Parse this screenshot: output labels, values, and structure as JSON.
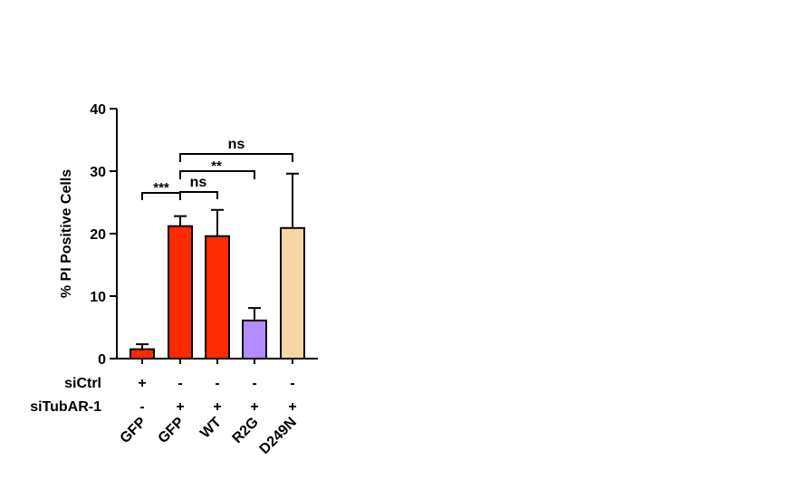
{
  "chart_data": {
    "type": "bar",
    "categories": [
      "GFP",
      "GFP",
      "WT",
      "R2G",
      "D249N"
    ],
    "values": [
      1.5,
      21.2,
      19.6,
      6.1,
      20.9
    ],
    "errors": [
      0.8,
      1.6,
      4.2,
      2.0,
      8.7
    ],
    "colors": [
      "#ff2a00",
      "#ff2a00",
      "#ff2a00",
      "#b38cff",
      "#f7d6a6"
    ],
    "ylabel": "% PI Positive Cells",
    "xlabel": "",
    "ylim": [
      0,
      40
    ],
    "yticks": [
      0,
      10,
      20,
      30,
      40
    ],
    "grid": false,
    "conditions": [
      {
        "name": "siCtrl",
        "values": [
          "+",
          "-",
          "-",
          "-",
          "-"
        ]
      },
      {
        "name": "siTubAR-1",
        "values": [
          "-",
          "+",
          "+",
          "+",
          "+"
        ]
      }
    ],
    "significance": [
      {
        "from": 0,
        "to": 1,
        "label": "***"
      },
      {
        "from": 1,
        "to": 2,
        "label": "ns"
      },
      {
        "from": 1,
        "to": 3,
        "label": "**"
      },
      {
        "from": 1,
        "to": 4,
        "label": "ns"
      }
    ]
  }
}
